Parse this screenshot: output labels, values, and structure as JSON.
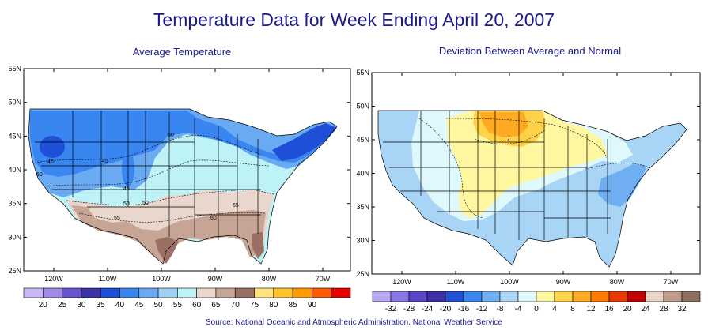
{
  "title": "Temperature Data for Week Ending April 20, 2007",
  "source": "Source:  National Oceanic and Atmospheric Administration, National Weather Service",
  "left_map": {
    "subtitle": "Average Temperature",
    "lat_labels": [
      "55N",
      "50N",
      "45N",
      "40N",
      "35N",
      "30N",
      "25N"
    ],
    "lon_labels": [
      "120W",
      "110W",
      "100W",
      "90W",
      "80W",
      "70W"
    ],
    "contour_labels": [
      "40",
      "45",
      "50",
      "45",
      "50",
      "55",
      "50",
      "55",
      "60",
      "50"
    ],
    "legend": {
      "labels": [
        "20",
        "25",
        "30",
        "35",
        "40",
        "45",
        "50",
        "55",
        "60",
        "65",
        "70",
        "75",
        "80",
        "85",
        "90"
      ],
      "colors": [
        "#c9b8f5",
        "#9f8be6",
        "#6a54cf",
        "#3c33a8",
        "#1e4fd6",
        "#3a86f0",
        "#6aaaf2",
        "#9fd0f2",
        "#bdf2f6",
        "#e9d6cc",
        "#c7a595",
        "#9a6f64",
        "#ffe27a",
        "#ffc12c",
        "#ff9a00",
        "#ff5a00",
        "#e60000"
      ]
    }
  },
  "right_map": {
    "subtitle": "Deviation Between Average and Normal",
    "lat_labels": [
      "55N",
      "50N",
      "45N",
      "40N",
      "35N",
      "30N",
      "25N"
    ],
    "lon_labels": [
      "120W",
      "110W",
      "100W",
      "90W",
      "80W",
      "70W"
    ],
    "contour_labels": [
      "4"
    ],
    "legend": {
      "labels": [
        "-32",
        "-28",
        "-24",
        "-20",
        "-16",
        "-12",
        "-8",
        "-4",
        "0",
        "4",
        "8",
        "12",
        "16",
        "20",
        "24",
        "28",
        "32"
      ],
      "colors": [
        "#b7a6f2",
        "#8a76e4",
        "#5a45c9",
        "#3a2fa6",
        "#1f4fd5",
        "#3a86ee",
        "#70aef2",
        "#a8d4f6",
        "#dff8fb",
        "#fff6a0",
        "#ffd24a",
        "#ffaa22",
        "#ff7a00",
        "#e63a00",
        "#c20000",
        "#e9d4c4",
        "#bf9c8a",
        "#8c6f5f"
      ]
    }
  }
}
